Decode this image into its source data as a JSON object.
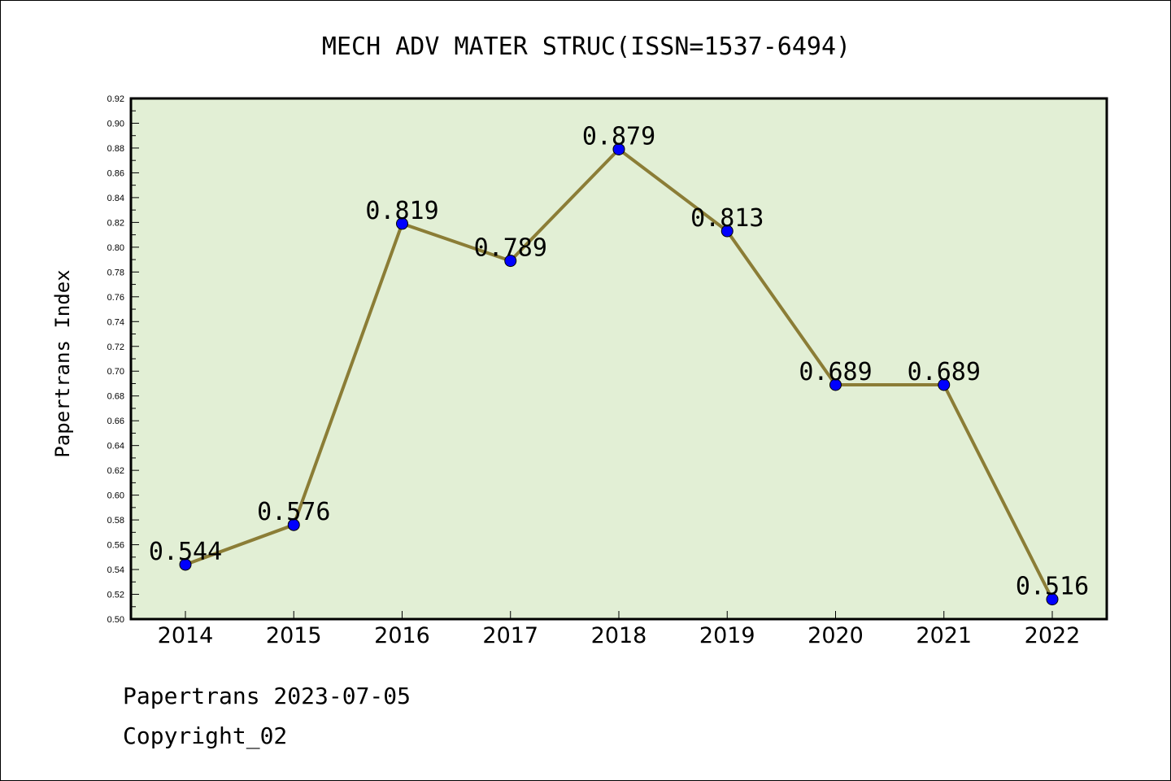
{
  "chart_data": {
    "type": "line",
    "title": "MECH ADV MATER STRUC(ISSN=1537-6494)",
    "ylabel": "Papertrans Index",
    "xlabel": "",
    "categories": [
      "2014",
      "2015",
      "2016",
      "2017",
      "2018",
      "2019",
      "2020",
      "2021",
      "2022"
    ],
    "series": [
      {
        "values": [
          0.544,
          0.576,
          0.819,
          0.789,
          0.879,
          0.813,
          0.689,
          0.689,
          0.516
        ],
        "labels": [
          "0.544",
          "0.576",
          "0.819",
          "0.789",
          "0.879",
          "0.813",
          "0.689",
          "0.689",
          "0.516"
        ]
      }
    ],
    "ylim": [
      0.5,
      0.92
    ],
    "yticks": [
      "0.50",
      "0.52",
      "0.54",
      "0.56",
      "0.58",
      "0.60",
      "0.62",
      "0.64",
      "0.66",
      "0.68",
      "0.70",
      "0.72",
      "0.74",
      "0.76",
      "0.78",
      "0.80",
      "0.82",
      "0.84",
      "0.86",
      "0.88",
      "0.90",
      "0.92"
    ],
    "grid": false,
    "colors": {
      "plot_bg": "#e2efd5",
      "line": "#8b7d36",
      "marker": "#0000ff"
    }
  },
  "footer": {
    "line1": "Papertrans 2023-07-05",
    "line2": "Copyright_02"
  }
}
